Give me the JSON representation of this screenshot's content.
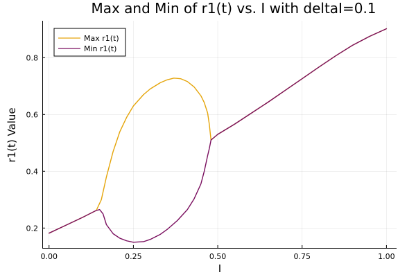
{
  "chart_data": {
    "type": "line",
    "title": "Max and Min of r1(t) vs. I with deltaI=0.1",
    "xlabel": "I",
    "ylabel": "r1(t) Value",
    "xlim": [
      -0.02,
      1.03
    ],
    "ylim": [
      0.13,
      0.93
    ],
    "xticks": [
      0.0,
      0.25,
      0.5,
      0.75,
      1.0
    ],
    "xtick_labels": [
      "0.00",
      "0.25",
      "0.50",
      "0.75",
      "1.00"
    ],
    "yticks": [
      0.2,
      0.4,
      0.6,
      0.8
    ],
    "ytick_labels": [
      "0.2",
      "0.4",
      "0.6",
      "0.8"
    ],
    "grid": true,
    "legend_position": "top-left",
    "series": [
      {
        "name": "Max r1(t)",
        "color": "#e5a50a",
        "x": [
          0.0,
          0.05,
          0.1,
          0.14,
          0.155,
          0.17,
          0.19,
          0.21,
          0.23,
          0.25,
          0.28,
          0.3,
          0.33,
          0.35,
          0.37,
          0.39,
          0.41,
          0.43,
          0.45,
          0.46,
          0.47,
          0.475,
          0.48,
          0.49,
          0.5,
          0.55,
          0.6,
          0.65,
          0.7,
          0.75,
          0.8,
          0.85,
          0.9,
          0.95,
          1.0
        ],
        "y": [
          0.182,
          0.21,
          0.238,
          0.262,
          0.3,
          0.38,
          0.47,
          0.54,
          0.59,
          0.63,
          0.67,
          0.69,
          0.712,
          0.722,
          0.728,
          0.726,
          0.716,
          0.697,
          0.666,
          0.642,
          0.605,
          0.565,
          0.51,
          0.52,
          0.53,
          0.566,
          0.605,
          0.644,
          0.685,
          0.726,
          0.767,
          0.807,
          0.844,
          0.875,
          0.902
        ]
      },
      {
        "name": "Min r1(t)",
        "color": "#7a0f5f",
        "x": [
          0.0,
          0.05,
          0.1,
          0.14,
          0.15,
          0.16,
          0.17,
          0.19,
          0.21,
          0.23,
          0.25,
          0.28,
          0.3,
          0.33,
          0.35,
          0.38,
          0.41,
          0.43,
          0.45,
          0.46,
          0.47,
          0.475,
          0.48,
          0.49,
          0.5,
          0.55,
          0.6,
          0.65,
          0.7,
          0.75,
          0.8,
          0.85,
          0.9,
          0.95,
          1.0
        ],
        "y": [
          0.182,
          0.21,
          0.238,
          0.262,
          0.265,
          0.25,
          0.212,
          0.18,
          0.164,
          0.155,
          0.15,
          0.152,
          0.16,
          0.178,
          0.195,
          0.226,
          0.265,
          0.303,
          0.355,
          0.4,
          0.455,
          0.48,
          0.51,
          0.52,
          0.53,
          0.566,
          0.605,
          0.644,
          0.685,
          0.726,
          0.767,
          0.807,
          0.844,
          0.875,
          0.902
        ]
      }
    ]
  }
}
